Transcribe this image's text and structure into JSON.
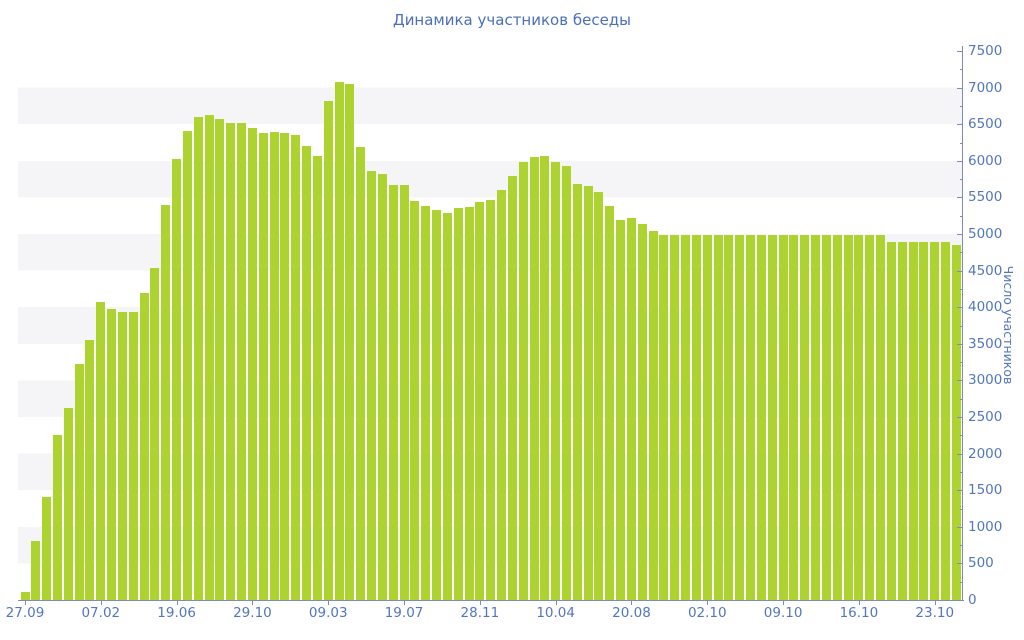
{
  "chart_data": {
    "type": "bar",
    "title": "Динамика участников беседы",
    "ylabel": "Число участников",
    "xlabel": "",
    "ylim": [
      0,
      7500
    ],
    "y_tick_step": 500,
    "y_minor_tick_step": 250,
    "y_tick_labels": [
      "0",
      "500",
      "1000",
      "1500",
      "2000",
      "2500",
      "3000",
      "3500",
      "4000",
      "4500",
      "5000",
      "5500",
      "6000",
      "6500",
      "7000",
      "7500"
    ],
    "grid": "alternating horizontal bands every 500 units",
    "legend": false,
    "x_tick_labels": [
      {
        "index": 0,
        "label": "27.09"
      },
      {
        "index": 7,
        "label": "07.02"
      },
      {
        "index": 14,
        "label": "19.06"
      },
      {
        "index": 21,
        "label": "29.10"
      },
      {
        "index": 28,
        "label": "09.03"
      },
      {
        "index": 35,
        "label": "19.07"
      },
      {
        "index": 42,
        "label": "28.11"
      },
      {
        "index": 49,
        "label": "10.04"
      },
      {
        "index": 56,
        "label": "20.08"
      },
      {
        "index": 63,
        "label": "02.10"
      },
      {
        "index": 70,
        "label": "09.10"
      },
      {
        "index": 77,
        "label": "16.10"
      },
      {
        "index": 84,
        "label": "23.10"
      }
    ],
    "series": [
      {
        "name": "Число участников",
        "values": [
          115,
          810,
          1410,
          2250,
          2620,
          3230,
          3550,
          4070,
          3980,
          3940,
          3940,
          4200,
          4530,
          5390,
          6030,
          6410,
          6600,
          6620,
          6570,
          6520,
          6520,
          6450,
          6380,
          6390,
          6380,
          6350,
          6200,
          6070,
          6820,
          7075,
          7050,
          6190,
          5860,
          5820,
          5670,
          5670,
          5450,
          5380,
          5330,
          5290,
          5360,
          5370,
          5440,
          5470,
          5600,
          5790,
          5980,
          6050,
          6060,
          5980,
          5930,
          5680,
          5660,
          5570,
          5380,
          5190,
          5220,
          5130,
          5040,
          4990,
          4990,
          4990,
          4990,
          4990,
          4990,
          4990,
          4990,
          4990,
          4990,
          4990,
          4990,
          4990,
          4990,
          4990,
          4990,
          4980,
          4980,
          4980,
          4980,
          4980,
          4890,
          4890,
          4890,
          4890,
          4890,
          4890,
          4855
        ]
      }
    ]
  },
  "colors": {
    "bar_fill": "#acd32f",
    "title_text": "#4a6fba",
    "tick_label_text": "#5277bd",
    "axis_line": "#7e8cbd",
    "grid_band": "#f5f5f7",
    "background": "#ffffff"
  }
}
